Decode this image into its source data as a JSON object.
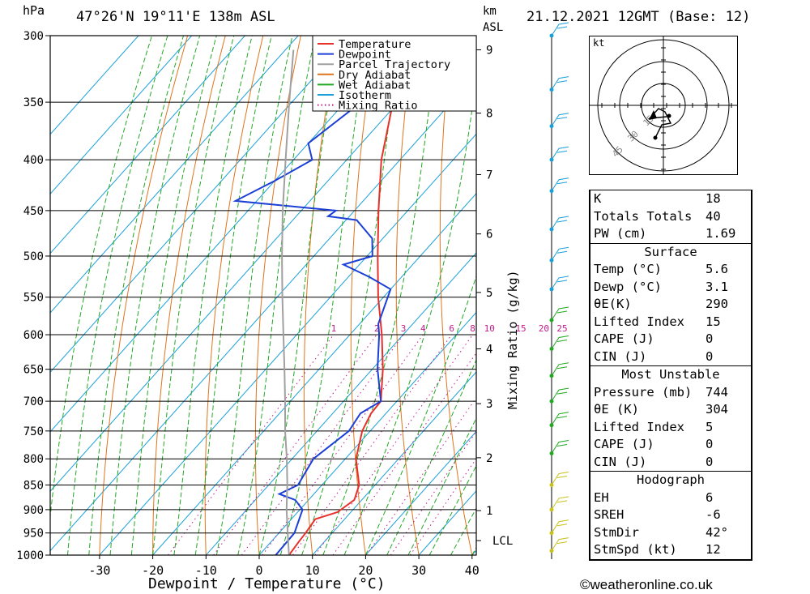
{
  "header": {
    "pressure_unit": "hPa",
    "location": "47°26'N  19°11'E  138m  ASL",
    "height_unit_line1": "km",
    "height_unit_line2": "ASL",
    "datetime": "21.12.2021  12GMT  (Base: 12)"
  },
  "footer": {
    "copyright": "©weatheronline.co.uk"
  },
  "colors": {
    "temperature": "#e8302a",
    "dewpoint": "#1c3fd6",
    "parcel": "#a0a0a0",
    "dry_adiabat": "#e0741c",
    "wet_adiabat": "#22a822",
    "isotherm": "#1aa0d8",
    "mixing_ratio": "#c21a8c"
  },
  "chart_data": {
    "type": "line",
    "xlabel": "Dewpoint / Temperature (°C)",
    "ylabel": "Mixing Ratio (g/kg)",
    "x_ticks": [
      "-30",
      "-20",
      "-10",
      "0",
      "10",
      "20",
      "30",
      "40"
    ],
    "pressure_levels": [
      300,
      350,
      400,
      450,
      500,
      550,
      600,
      650,
      700,
      750,
      800,
      850,
      900,
      950,
      1000
    ],
    "pressure_labels": [
      "300",
      "350",
      "400",
      "450",
      "500",
      "550",
      "600",
      "650",
      "700",
      "750",
      "800",
      "850",
      "900",
      "950",
      "1000"
    ],
    "height_km_ticks": [
      {
        "label": "9",
        "p": 310
      },
      {
        "label": "8",
        "p": 359
      },
      {
        "label": "7",
        "p": 414
      },
      {
        "label": "6",
        "p": 475
      },
      {
        "label": "5",
        "p": 544
      },
      {
        "label": "4",
        "p": 620
      },
      {
        "label": "3",
        "p": 704
      },
      {
        "label": "2",
        "p": 798
      },
      {
        "label": "1",
        "p": 902
      },
      {
        "label": "LCL",
        "p": 967
      }
    ],
    "mixing_ratio_labels": [
      "1",
      "2",
      "3",
      "4",
      "6",
      "8",
      "10",
      "15",
      "20",
      "25"
    ],
    "legend": [
      "Temperature",
      "Dewpoint",
      "Parcel Trajectory",
      "Dry Adiabat",
      "Wet Adiabat",
      "Isotherm",
      "Mixing Ratio"
    ],
    "series": [
      {
        "name": "Temperature",
        "p": [
          1000,
          970,
          950,
          920,
          905,
          880,
          850,
          800,
          750,
          720,
          700,
          650,
          600,
          550,
          500,
          450,
          400,
          350,
          300
        ],
        "t": [
          5.6,
          5.2,
          5.0,
          4.5,
          7.5,
          8.6,
          7.0,
          2.0,
          -1.5,
          -2.8,
          -3.0,
          -8.0,
          -14.0,
          -21.0,
          -28.0,
          -35.5,
          -43.5,
          -51.0,
          -59.5
        ]
      },
      {
        "name": "Dewpoint",
        "p": [
          1000,
          950,
          900,
          880,
          868,
          850,
          800,
          750,
          720,
          700,
          650,
          600,
          585,
          540,
          525,
          510,
          500,
          480,
          460,
          456,
          450,
          440,
          420,
          400,
          385,
          350,
          310,
          300
        ],
        "t": [
          3.1,
          2.9,
          0.5,
          -2.5,
          -6.5,
          -4.5,
          -6.0,
          -4.0,
          -4.8,
          -3.0,
          -9.0,
          -14.5,
          -16.5,
          -20.0,
          -26.0,
          -33.0,
          -29.0,
          -32.0,
          -38.0,
          -44.0,
          -43.5,
          -64.0,
          -60.0,
          -56.5,
          -60.0,
          -57.0,
          -52.0,
          -51.5
        ]
      },
      {
        "name": "Parcel Trajectory",
        "p": [
          1000,
          967,
          900,
          850,
          800,
          750,
          700,
          650,
          600,
          550,
          500,
          450,
          400,
          350,
          310
        ],
        "t": [
          5.6,
          3.0,
          -2.5,
          -6.5,
          -11.0,
          -16.0,
          -21.0,
          -26.5,
          -32.5,
          -39.0,
          -46.0,
          -53.5,
          -61.5,
          -70.5,
          -78.5
        ]
      }
    ]
  },
  "hodograph": {
    "unit": "kt",
    "ring_labels": [
      "15",
      "30",
      "45"
    ]
  },
  "indices": {
    "k_label": "K",
    "k_value": "18",
    "tt_label": "Totals Totals",
    "tt_value": "40",
    "pw_label": "PW (cm)",
    "pw_value": "1.69",
    "surface": {
      "title": "Surface",
      "rows": [
        {
          "label": "Temp (°C)",
          "value": "5.6"
        },
        {
          "label": "Dewp (°C)",
          "value": "3.1"
        },
        {
          "label": "θE(K)",
          "value": "290"
        },
        {
          "label": "Lifted Index",
          "value": "15"
        },
        {
          "label": "CAPE (J)",
          "value": "0"
        },
        {
          "label": "CIN (J)",
          "value": "0"
        }
      ]
    },
    "most_unstable": {
      "title": "Most Unstable",
      "rows": [
        {
          "label": "Pressure (mb)",
          "value": "744"
        },
        {
          "label": "θE (K)",
          "value": "304"
        },
        {
          "label": "Lifted Index",
          "value": "5"
        },
        {
          "label": "CAPE (J)",
          "value": "0"
        },
        {
          "label": "CIN (J)",
          "value": "0"
        }
      ]
    },
    "hodograph": {
      "title": "Hodograph",
      "rows": [
        {
          "label": "EH",
          "value": "6"
        },
        {
          "label": "SREH",
          "value": "-6"
        },
        {
          "label": "StmDir",
          "value": "42°"
        },
        {
          "label": "StmSpd (kt)",
          "value": "12"
        }
      ]
    }
  }
}
